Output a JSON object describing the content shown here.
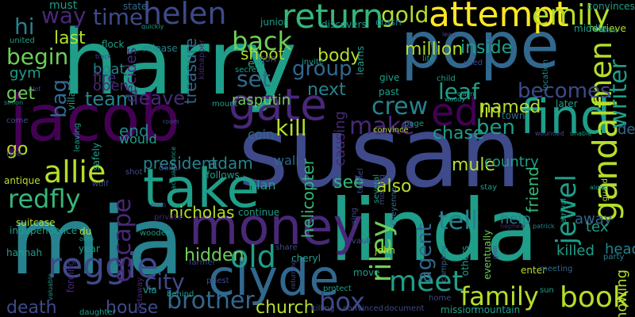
{
  "palette": {
    "background": "#000000",
    "dark_purple": "#440154",
    "purple": "#482878",
    "indigo": "#3e4a89",
    "blue": "#31688e",
    "teal": "#26828e",
    "green_teal": "#1f9e89",
    "green": "#35b779",
    "lime": "#6ece58",
    "yellow_green": "#b5de2b",
    "yellow": "#fde725"
  },
  "words": [
    {
      "text": "harry",
      "color": "green_teal"
    },
    {
      "text": "susan",
      "color": "indigo"
    },
    {
      "text": "pope",
      "color": "blue"
    },
    {
      "text": "jacob",
      "color": "dark_purple"
    },
    {
      "text": "mia",
      "color": "teal"
    },
    {
      "text": "linda",
      "color": "green_teal"
    },
    {
      "text": "money",
      "color": "purple"
    },
    {
      "text": "take",
      "color": "green_teal"
    },
    {
      "text": "find",
      "color": "green_teal"
    },
    {
      "text": "clyde",
      "color": "blue"
    },
    {
      "text": "gate",
      "color": "purple"
    },
    {
      "text": "attempt",
      "color": "yellow"
    },
    {
      "text": "helen",
      "color": "indigo"
    },
    {
      "text": "return",
      "color": "green"
    },
    {
      "text": "reggie",
      "color": "indigo"
    },
    {
      "text": "gandalf",
      "color": "yellow_green"
    },
    {
      "text": "ed",
      "color": "dark_purple"
    },
    {
      "text": "emily",
      "color": "yellow_green"
    },
    {
      "text": "allie",
      "color": "yellow_green"
    },
    {
      "text": "meet",
      "color": "green_teal"
    },
    {
      "text": "family",
      "color": "yellow_green"
    },
    {
      "text": "book",
      "color": "yellow_green"
    },
    {
      "text": "old",
      "color": "green_teal"
    },
    {
      "text": "men",
      "color": "yellow_green"
    },
    {
      "text": "redfly",
      "color": "green"
    },
    {
      "text": "back",
      "color": "lime"
    },
    {
      "text": "crew",
      "color": "teal"
    },
    {
      "text": "tell",
      "color": "teal"
    },
    {
      "text": "make",
      "color": "purple"
    },
    {
      "text": "riley",
      "color": "lime"
    },
    {
      "text": "jewel",
      "color": "green_teal"
    },
    {
      "text": "brother",
      "color": "blue"
    },
    {
      "text": "city",
      "color": "indigo"
    },
    {
      "text": "box",
      "color": "indigo"
    },
    {
      "text": "escape",
      "color": "purple"
    },
    {
      "text": "writer",
      "color": "green_teal"
    },
    {
      "text": "gold",
      "color": "yellow_green"
    },
    {
      "text": "way",
      "color": "purple"
    },
    {
      "text": "time",
      "color": "indigo"
    },
    {
      "text": "hi",
      "color": "teal"
    },
    {
      "text": "begin",
      "color": "lime"
    },
    {
      "text": "bag",
      "color": "blue"
    },
    {
      "text": "team",
      "color": "teal"
    },
    {
      "text": "leave",
      "color": "purple"
    },
    {
      "text": "set",
      "color": "blue"
    },
    {
      "text": "group",
      "color": "blue"
    },
    {
      "text": "kill",
      "color": "yellow_green"
    },
    {
      "text": "leaf",
      "color": "green_teal"
    },
    {
      "text": "ben",
      "color": "green_teal"
    },
    {
      "text": "lin",
      "color": "yellow_green"
    },
    {
      "text": "becomes",
      "color": "indigo"
    },
    {
      "text": "named",
      "color": "yellow_green"
    },
    {
      "text": "chase",
      "color": "green_teal"
    },
    {
      "text": "agent",
      "color": "blue"
    },
    {
      "text": "hidden",
      "color": "lime"
    },
    {
      "text": "house",
      "color": "indigo"
    },
    {
      "text": "church",
      "color": "yellow_green"
    },
    {
      "text": "death",
      "color": "indigo"
    },
    {
      "text": "nicholas",
      "color": "yellow_green"
    },
    {
      "text": "president",
      "color": "teal"
    },
    {
      "text": "adam",
      "color": "teal"
    },
    {
      "text": "helicopter",
      "color": "green"
    },
    {
      "text": "also",
      "color": "yellow_green"
    },
    {
      "text": "see",
      "color": "green"
    },
    {
      "text": "mule",
      "color": "yellow_green"
    },
    {
      "text": "country",
      "color": "green_teal"
    },
    {
      "text": "friend",
      "color": "green"
    },
    {
      "text": "shoot",
      "color": "yellow_green"
    },
    {
      "text": "body",
      "color": "yellow_green"
    },
    {
      "text": "next",
      "color": "teal"
    },
    {
      "text": "rasputin",
      "color": "lime"
    },
    {
      "text": "treasure",
      "color": "blue"
    },
    {
      "text": "million",
      "color": "yellow_green"
    },
    {
      "text": "inside",
      "color": "green_teal"
    },
    {
      "text": "last",
      "color": "yellow_green"
    },
    {
      "text": "get",
      "color": "lime"
    },
    {
      "text": "go",
      "color": "yellow_green"
    },
    {
      "text": "end",
      "color": "teal"
    },
    {
      "text": "would",
      "color": "green_teal"
    },
    {
      "text": "plan",
      "color": "green_teal"
    },
    {
      "text": "wall",
      "color": "blue"
    },
    {
      "text": "coin",
      "color": "blue"
    },
    {
      "text": "causing",
      "color": "purple"
    },
    {
      "text": "help",
      "color": "teal"
    },
    {
      "text": "away",
      "color": "blue"
    },
    {
      "text": "tex",
      "color": "green_teal"
    },
    {
      "text": "killed",
      "color": "green_teal"
    },
    {
      "text": "head",
      "color": "teal"
    },
    {
      "text": "knowing",
      "color": "yellow_green"
    },
    {
      "text": "de",
      "color": "blue"
    },
    {
      "text": "decides",
      "color": "purple"
    },
    {
      "text": "boat",
      "color": "teal"
    },
    {
      "text": "fire",
      "color": "purple"
    },
    {
      "text": "open",
      "color": "purple"
    },
    {
      "text": "gym",
      "color": "green_teal"
    },
    {
      "text": "must",
      "color": "green_teal"
    },
    {
      "text": "suitcase",
      "color": "yellow_green"
    },
    {
      "text": "state",
      "color": "blue"
    },
    {
      "text": "flock",
      "color": "green_teal"
    },
    {
      "text": "junior",
      "color": "green_teal"
    },
    {
      "text": "discovers",
      "color": "green_teal"
    },
    {
      "text": "crash",
      "color": "teal"
    },
    {
      "text": "convinces",
      "color": "green_teal"
    },
    {
      "text": "retrieve",
      "color": "yellow_green"
    },
    {
      "text": "middle",
      "color": "green_teal"
    },
    {
      "text": "follow",
      "color": "green_teal"
    },
    {
      "text": "release",
      "color": "teal"
    },
    {
      "text": "kidnapper",
      "color": "purple"
    },
    {
      "text": "son",
      "color": "indigo"
    },
    {
      "text": "em",
      "color": "green_teal"
    },
    {
      "text": "secret",
      "color": "green_teal"
    },
    {
      "text": "invite",
      "color": "green_teal"
    },
    {
      "text": "learns",
      "color": "green_teal"
    },
    {
      "text": "give",
      "color": "green_teal"
    },
    {
      "text": "life",
      "color": "green_teal"
    },
    {
      "text": "used",
      "color": "indigo"
    },
    {
      "text": "child",
      "color": "green_teal"
    },
    {
      "text": "past",
      "color": "green_teal"
    },
    {
      "text": "woody",
      "color": "green_teal"
    },
    {
      "text": "claim",
      "color": "green_teal"
    },
    {
      "text": "location",
      "color": "teal"
    },
    {
      "text": "later",
      "color": "green_teal"
    },
    {
      "text": "town",
      "color": "blue"
    },
    {
      "text": "convince",
      "color": "yellow_green"
    },
    {
      "text": "page",
      "color": "green_teal"
    },
    {
      "text": "wounded",
      "color": "indigo"
    },
    {
      "text": "unable",
      "color": "green_teal"
    },
    {
      "text": "mount",
      "color": "green_teal"
    },
    {
      "text": "room",
      "color": "indigo"
    },
    {
      "text": "follows",
      "color": "green_teal"
    },
    {
      "text": "come",
      "color": "indigo"
    },
    {
      "text": "rule",
      "color": "indigo"
    },
    {
      "text": "antique",
      "color": "yellow_green"
    },
    {
      "text": "independence",
      "color": "green_teal"
    },
    {
      "text": "hannah",
      "color": "green_teal"
    },
    {
      "text": "valuable",
      "color": "green_teal"
    },
    {
      "text": "forcing",
      "color": "purple"
    },
    {
      "text": "year",
      "color": "green_teal"
    },
    {
      "text": "du",
      "color": "yellow_green"
    },
    {
      "text": "onto",
      "color": "green_teal"
    },
    {
      "text": "getaway",
      "color": "purple"
    },
    {
      "text": "dollar",
      "color": "indigo"
    },
    {
      "text": "shot",
      "color": "indigo"
    },
    {
      "text": "wolf",
      "color": "indigo"
    },
    {
      "text": "private",
      "color": "purple"
    },
    {
      "text": "soon",
      "color": "indigo"
    },
    {
      "text": "continue",
      "color": "green_teal"
    },
    {
      "text": "wooden",
      "color": "green_teal"
    },
    {
      "text": "farmer",
      "color": "indigo"
    },
    {
      "text": "share",
      "color": "indigo"
    },
    {
      "text": "cheryl",
      "color": "green_teal"
    },
    {
      "text": "returning",
      "color": "indigo"
    },
    {
      "text": "priest",
      "color": "indigo"
    },
    {
      "text": "via",
      "color": "green_teal"
    },
    {
      "text": "behind",
      "color": "green_teal"
    },
    {
      "text": "protect",
      "color": "green_teal"
    },
    {
      "text": "killing",
      "color": "indigo"
    },
    {
      "text": "convinced",
      "color": "indigo"
    },
    {
      "text": "document",
      "color": "indigo"
    },
    {
      "text": "john",
      "color": "yellow_green"
    },
    {
      "text": "vault",
      "color": "indigo"
    },
    {
      "text": "move",
      "color": "green_teal"
    },
    {
      "text": "cheyenne",
      "color": "blue"
    },
    {
      "text": "tunnel",
      "color": "indigo"
    },
    {
      "text": "several",
      "color": "green_teal"
    },
    {
      "text": "missing",
      "color": "indigo"
    },
    {
      "text": "using",
      "color": "indigo"
    },
    {
      "text": "company",
      "color": "blue"
    },
    {
      "text": "others",
      "color": "green_teal"
    },
    {
      "text": "eventually",
      "color": "lime"
    },
    {
      "text": "mission",
      "color": "green_teal"
    },
    {
      "text": "mountain",
      "color": "green_teal"
    },
    {
      "text": "home",
      "color": "indigo"
    },
    {
      "text": "stay",
      "color": "green_teal"
    },
    {
      "text": "nephew",
      "color": "purple"
    },
    {
      "text": "arrival",
      "color": "green_teal"
    },
    {
      "text": "patrick",
      "color": "teal"
    },
    {
      "text": "along",
      "color": "green_teal"
    },
    {
      "text": "guard",
      "color": "yellow_green"
    },
    {
      "text": "enter",
      "color": "yellow_green"
    },
    {
      "text": "meeting",
      "color": "blue"
    },
    {
      "text": "party",
      "color": "teal"
    },
    {
      "text": "glen",
      "color": "indigo"
    },
    {
      "text": "sun",
      "color": "green_teal"
    },
    {
      "text": "safely",
      "color": "green_teal"
    },
    {
      "text": "leaving",
      "color": "green_teal"
    },
    {
      "text": "villager",
      "color": "green_teal"
    },
    {
      "text": "simon",
      "color": "green_teal"
    },
    {
      "text": "united",
      "color": "green_teal"
    },
    {
      "text": "quickly",
      "color": "green_teal"
    },
    {
      "text": "track",
      "color": "indigo"
    },
    {
      "text": "lead",
      "color": "indigo"
    },
    {
      "text": "daughter",
      "color": "green_teal"
    },
    {
      "text": "acquaintance",
      "color": "green_teal"
    },
    {
      "text": "plot",
      "color": "indigo"
    }
  ]
}
